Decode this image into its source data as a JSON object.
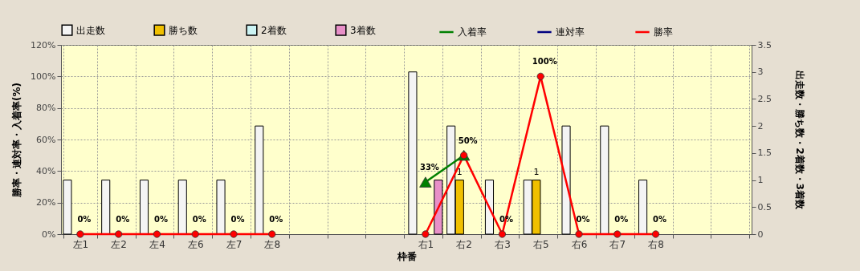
{
  "chart_data": {
    "type": "bar",
    "xlabel": "枠番",
    "ylabel": "勝率・連対率・入着率(%)",
    "y2label": "出走数・勝ち数・2着数・3着数",
    "categories": [
      "左1",
      "左2",
      "左4",
      "左6",
      "左7",
      "左8",
      null,
      null,
      null,
      "右1",
      "右2",
      "右3",
      "右5",
      "右6",
      "右7",
      "右8",
      null,
      null
    ],
    "series": [
      {
        "name": "出走数",
        "type": "bar",
        "axis": "y2",
        "color": "#f4f4f4",
        "values": [
          1,
          1,
          1,
          1,
          1,
          2,
          null,
          null,
          null,
          3,
          2,
          1,
          1,
          2,
          2,
          1,
          null,
          null
        ]
      },
      {
        "name": "勝ち数",
        "type": "bar",
        "axis": "y2",
        "color": "#f0c000",
        "values": [
          null,
          null,
          null,
          null,
          null,
          null,
          null,
          null,
          null,
          null,
          1,
          null,
          1,
          null,
          null,
          null,
          null,
          null
        ],
        "value_labels": [
          null,
          null,
          null,
          null,
          null,
          null,
          null,
          null,
          null,
          null,
          "1",
          null,
          "1",
          null,
          null,
          null,
          null,
          null
        ]
      },
      {
        "name": "2着数",
        "type": "bar",
        "axis": "y2",
        "color": "#ccf4f4",
        "values": [
          null,
          null,
          null,
          null,
          null,
          null,
          null,
          null,
          null,
          null,
          null,
          null,
          null,
          null,
          null,
          null,
          null,
          null
        ]
      },
      {
        "name": "3着数",
        "type": "bar",
        "axis": "y2",
        "color": "#e890c8",
        "values": [
          null,
          null,
          null,
          null,
          null,
          null,
          null,
          null,
          null,
          1,
          null,
          null,
          null,
          null,
          null,
          null,
          null,
          null
        ]
      },
      {
        "name": "入着率",
        "type": "line",
        "marker": "triangle",
        "color": "#008000",
        "values": [
          null,
          null,
          null,
          null,
          null,
          null,
          null,
          null,
          null,
          33,
          50,
          null,
          null,
          null,
          null,
          null,
          null,
          null
        ],
        "value_labels": [
          null,
          null,
          null,
          null,
          null,
          null,
          null,
          null,
          null,
          "33%",
          null,
          null,
          null,
          null,
          null,
          null,
          null,
          null
        ]
      },
      {
        "name": "連対率",
        "type": "line",
        "marker": "diamond",
        "color": "#000080",
        "values": [
          null,
          null,
          null,
          null,
          null,
          null,
          null,
          null,
          null,
          null,
          null,
          null,
          null,
          null,
          null,
          null,
          null,
          null
        ]
      },
      {
        "name": "勝率",
        "type": "line",
        "marker": "circle",
        "color": "#ff0000",
        "values": [
          0,
          0,
          0,
          0,
          0,
          0,
          null,
          null,
          null,
          0,
          50,
          0,
          100,
          0,
          0,
          0,
          null,
          null
        ],
        "value_labels": [
          "0%",
          "0%",
          "0%",
          "0%",
          "0%",
          "0%",
          null,
          null,
          null,
          null,
          "50%",
          "0%",
          "100%",
          "0%",
          "0%",
          "0%",
          null,
          null
        ]
      }
    ],
    "ylim": [
      0,
      120
    ],
    "yticks": [
      {
        "value": 0,
        "label": "0%"
      },
      {
        "value": 20,
        "label": "20%"
      },
      {
        "value": 40,
        "label": "40%"
      },
      {
        "value": 60,
        "label": "60%"
      },
      {
        "value": 80,
        "label": "80%"
      },
      {
        "value": 100,
        "label": "100%"
      },
      {
        "value": 120,
        "label": "120%"
      }
    ],
    "y2lim": [
      0,
      3.5
    ],
    "y2ticks": [
      0,
      0.5,
      1,
      1.5,
      2,
      2.5,
      3,
      3.5
    ],
    "grid": true,
    "legend": "top"
  }
}
